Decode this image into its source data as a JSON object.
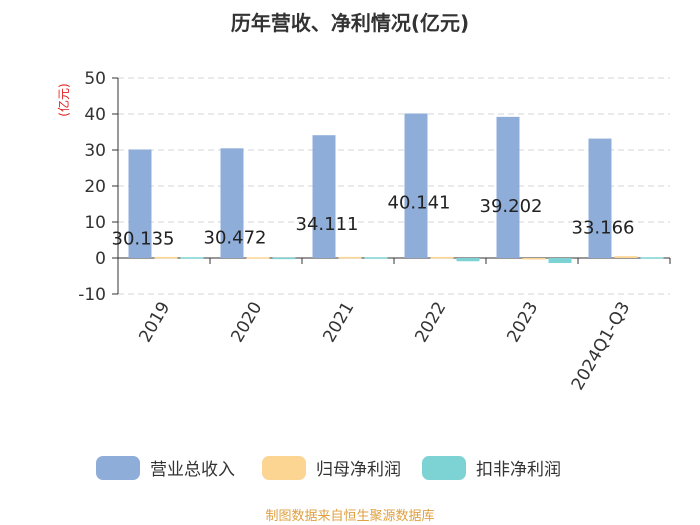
{
  "chart_data": {
    "type": "bar",
    "title": "历年营收、净利情况(亿元)",
    "ylabel": "(亿元)",
    "categories": [
      "2019",
      "2020",
      "2021",
      "2022",
      "2023",
      "2024Q1-Q3"
    ],
    "ylim": [
      -10,
      50
    ],
    "yticks": [
      -10,
      0,
      10,
      20,
      30,
      40,
      50
    ],
    "grid": true,
    "legend_position": "bottom",
    "series": [
      {
        "name": "营业总收入",
        "color": "#8eadd8",
        "values": [
          30.135,
          30.472,
          34.111,
          40.141,
          39.202,
          33.166
        ],
        "labels": [
          "30.135",
          "30.472",
          "34.111",
          "40.141",
          "39.202",
          "33.166"
        ]
      },
      {
        "name": "归母净利润",
        "color": "#fcd593",
        "values": [
          0.3,
          0.2,
          0.3,
          0.3,
          -0.4,
          0.5
        ]
      },
      {
        "name": "扣非净利润",
        "color": "#7dd3d3",
        "values": [
          0.2,
          0.1,
          0.2,
          -0.9,
          -1.4,
          0.2
        ]
      }
    ]
  },
  "footer": "制图数据来自恒生聚源数据库"
}
